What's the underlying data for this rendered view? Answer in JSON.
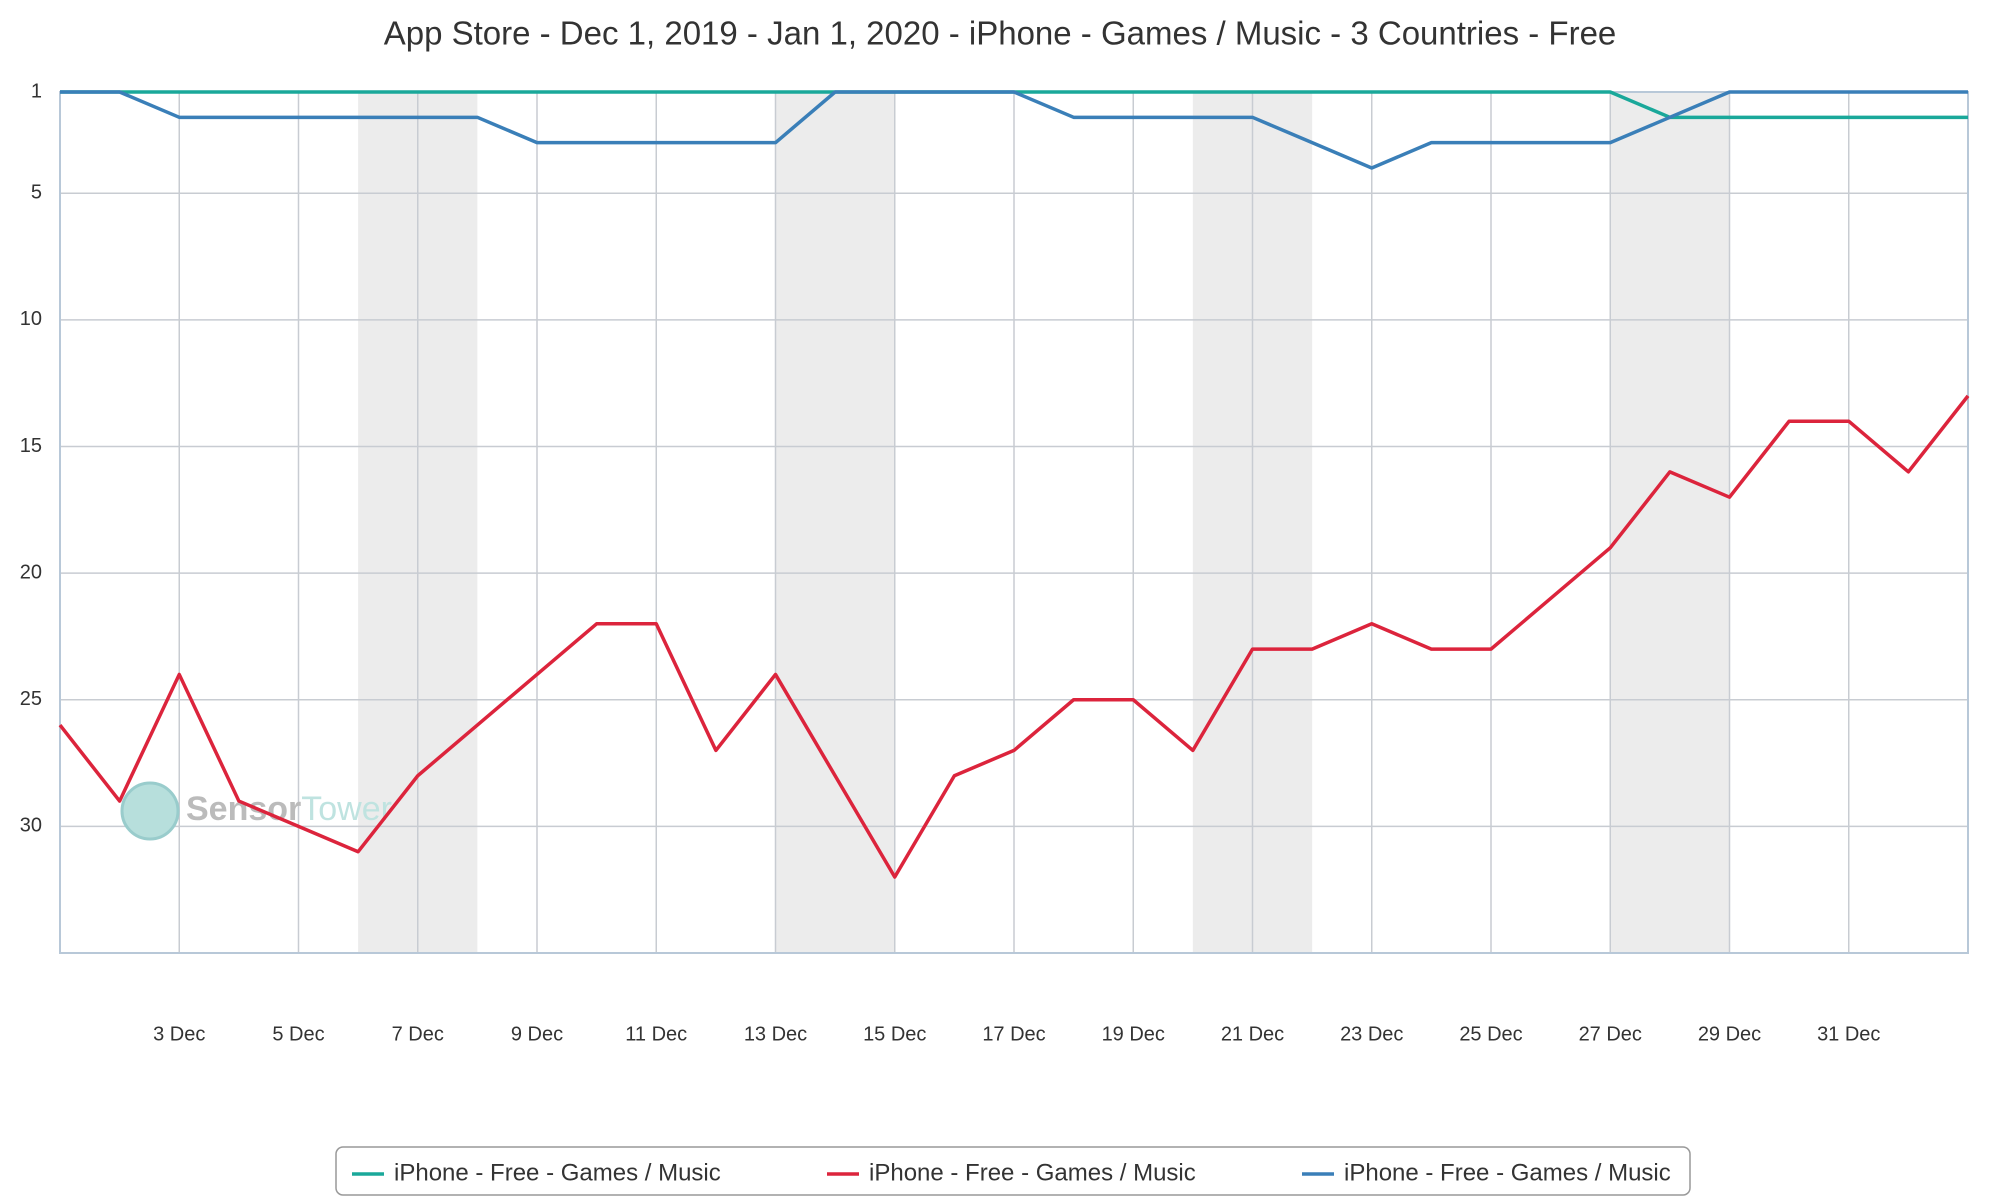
{
  "chart_data": {
    "type": "line",
    "title": "App Store - Dec 1, 2019 - Jan 1, 2020 - iPhone - Games / Music - 3 Countries - Free",
    "watermark": [
      "Sensor",
      "Tower"
    ],
    "categories": [
      null,
      null,
      "3 Dec",
      null,
      "5 Dec",
      null,
      "7 Dec",
      null,
      "9 Dec",
      null,
      "11 Dec",
      null,
      "13 Dec",
      null,
      "15 Dec",
      null,
      "17 Dec",
      null,
      "19 Dec",
      null,
      "21 Dec",
      null,
      "23 Dec",
      null,
      "25 Dec",
      null,
      "27 Dec",
      null,
      "29 Dec",
      null,
      "31 Dec",
      null,
      null
    ],
    "series": [
      {
        "name": "iPhone - Free - Games / Music",
        "color": "#1aa89a",
        "values": [
          1,
          1,
          1,
          1,
          1,
          1,
          1,
          1,
          1,
          1,
          1,
          1,
          1,
          1,
          1,
          1,
          1,
          1,
          1,
          1,
          1,
          1,
          1,
          1,
          1,
          1,
          1,
          2,
          2,
          2,
          2,
          2,
          2
        ]
      },
      {
        "name": "iPhone - Free - Games / Music",
        "color": "#dc243c",
        "values": [
          26,
          29,
          24,
          29,
          30,
          31,
          28,
          26,
          24,
          22,
          22,
          27,
          24,
          28,
          32,
          28,
          27,
          25,
          25,
          27,
          23,
          23,
          22,
          23,
          23,
          21,
          19,
          16,
          17,
          14,
          14,
          16,
          13
        ]
      },
      {
        "name": "iPhone - Free - Games / Music",
        "color": "#3a7fb8",
        "values": [
          1,
          1,
          2,
          2,
          2,
          2,
          2,
          2,
          3,
          3,
          3,
          3,
          3,
          1,
          1,
          1,
          1,
          2,
          2,
          2,
          2,
          3,
          4,
          3,
          3,
          3,
          3,
          2,
          1,
          1,
          1,
          1,
          1
        ]
      }
    ],
    "ylim": [
      1,
      35
    ],
    "y_inverted": true,
    "yticks": [
      1,
      5,
      10,
      15,
      20,
      25,
      30
    ],
    "grid": true
  }
}
